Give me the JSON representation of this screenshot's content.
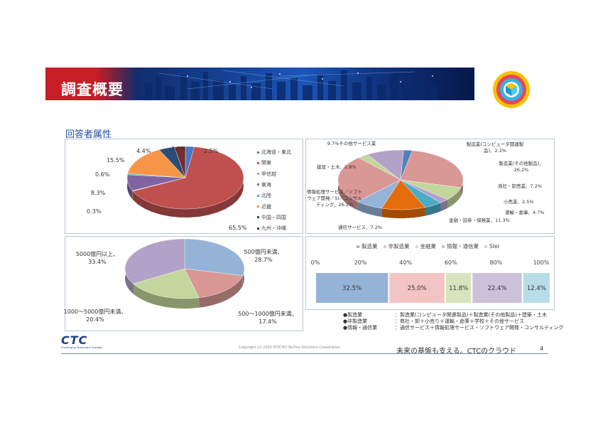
{
  "header": {
    "title": "調査概要"
  },
  "section": {
    "title": "回答者属性"
  },
  "chart_data": [
    {
      "type": "pie",
      "categories": [
        "北海道・東北",
        "関東",
        "甲信越",
        "東海",
        "北陸",
        "近畿",
        "中国・四国",
        "九州・沖縄"
      ],
      "values": [
        2.5,
        65.5,
        0.3,
        8.3,
        0.6,
        15.5,
        4.4,
        3.0
      ],
      "labels": [
        "2.5%",
        "65.5%",
        "0.3%",
        "8.3%",
        "0.6%",
        "15.5%",
        "4.4%",
        "3.0%"
      ],
      "colors": [
        "#4a78c2",
        "#c0504d",
        "#9bbb59",
        "#8064a2",
        "#4bacc6",
        "#f79646",
        "#2c4d75",
        "#772c2a"
      ],
      "legend_position": "right"
    },
    {
      "type": "pie",
      "categories": [
        "製造業(コンピュータ関連製品)",
        "製造業(その他製品)",
        "商社・卸売業",
        "小売業",
        "運輸・倉庫",
        "金融・証券・保険業",
        "通信サービス",
        "情報処理サービス／ソフトウェア開発／SI／コンサルティング",
        "建設・土木",
        "その他サービス業"
      ],
      "values": [
        2.2,
        26.2,
        7.2,
        2.5,
        4.7,
        11.3,
        7.2,
        26.2,
        2.8,
        9.7
      ],
      "labels": [
        "製造業(コンピュータ関連製品)、2.2%",
        "製造業(その他製品)、26.2%",
        "商社・卸売業、7.2%",
        "小売業、2.5%",
        "運輸・倉庫、4.7%",
        "金融・証券・保険業、11.3%",
        "通信サービス、7.2%",
        "情報処理サービス／ソフトウェア開発／SI／コンサルティング、26.2%",
        "建設・土木、2.8%",
        "9.7%その他サービス業"
      ],
      "colors": [
        "#4f81bd",
        "#d99795",
        "#c3d69b",
        "#b3a2c7",
        "#4bacc6",
        "#e46c0a",
        "#95b3d7",
        "#d99795",
        "#c3d69b",
        "#b3a2c7"
      ]
    },
    {
      "type": "pie",
      "categories": [
        "500億円未満",
        "500〜1000億円未満",
        "1000〜5000億円未満",
        "5000億円以上"
      ],
      "values": [
        28.7,
        17.4,
        20.4,
        33.4
      ],
      "labels": [
        "500億円未満、28.7%",
        "500〜1000億円未満、17.4%",
        "1000〜5000億円未満、20.4%",
        "5000億円以上、33.4%"
      ],
      "colors": [
        "#95b3d7",
        "#d99795",
        "#c3d69b",
        "#b3a2c7"
      ]
    },
    {
      "type": "bar",
      "orientation": "horizontal-stacked",
      "series": [
        {
          "name": "製造業",
          "values": [
            32.5
          ],
          "label": "32.5%",
          "color": "#95b3d7"
        },
        {
          "name": "非製造業",
          "values": [
            25.0
          ],
          "label": "25.0%",
          "color": "#f2c4c3"
        },
        {
          "name": "金融業",
          "values": [
            11.8
          ],
          "label": "11.8%",
          "color": "#d7e4bd"
        },
        {
          "name": "情報・通信業",
          "values": [
            22.4
          ],
          "label": "22.4%",
          "color": "#ccc1da"
        },
        {
          "name": "SIer",
          "values": [
            12.4
          ],
          "label": "12.4%",
          "color": "#b7dee8"
        }
      ],
      "xticks": [
        "0%",
        "20%",
        "40%",
        "60%",
        "80%",
        "100%"
      ],
      "xlim": [
        0,
        100
      ],
      "legend_position": "top"
    }
  ],
  "notes": [
    {
      "bullet": "●",
      "term": "製造業",
      "desc": "：製造業(コンピュータ関連製品)＋製造業(その他製品)＋建築・土木"
    },
    {
      "bullet": "●",
      "term": "非製造業",
      "desc": "：商社・卸＋小売り＋運輸・倉庫＋学校＋その他サービス"
    },
    {
      "bullet": "●",
      "term": "情報・通信業",
      "desc": "：通信サービス＋情報処理サービス・ソフトウェア開発・コンサルティング"
    }
  ],
  "footer": {
    "logo": "CTC",
    "tagline": "Challenging Tomorrow's Changes",
    "copyright": "Copyright (c) 2020 ITOCHU Techno-Solutions Corporation",
    "slogan": "未来の基盤も支える。CTCのクラウド",
    "page": "4"
  }
}
